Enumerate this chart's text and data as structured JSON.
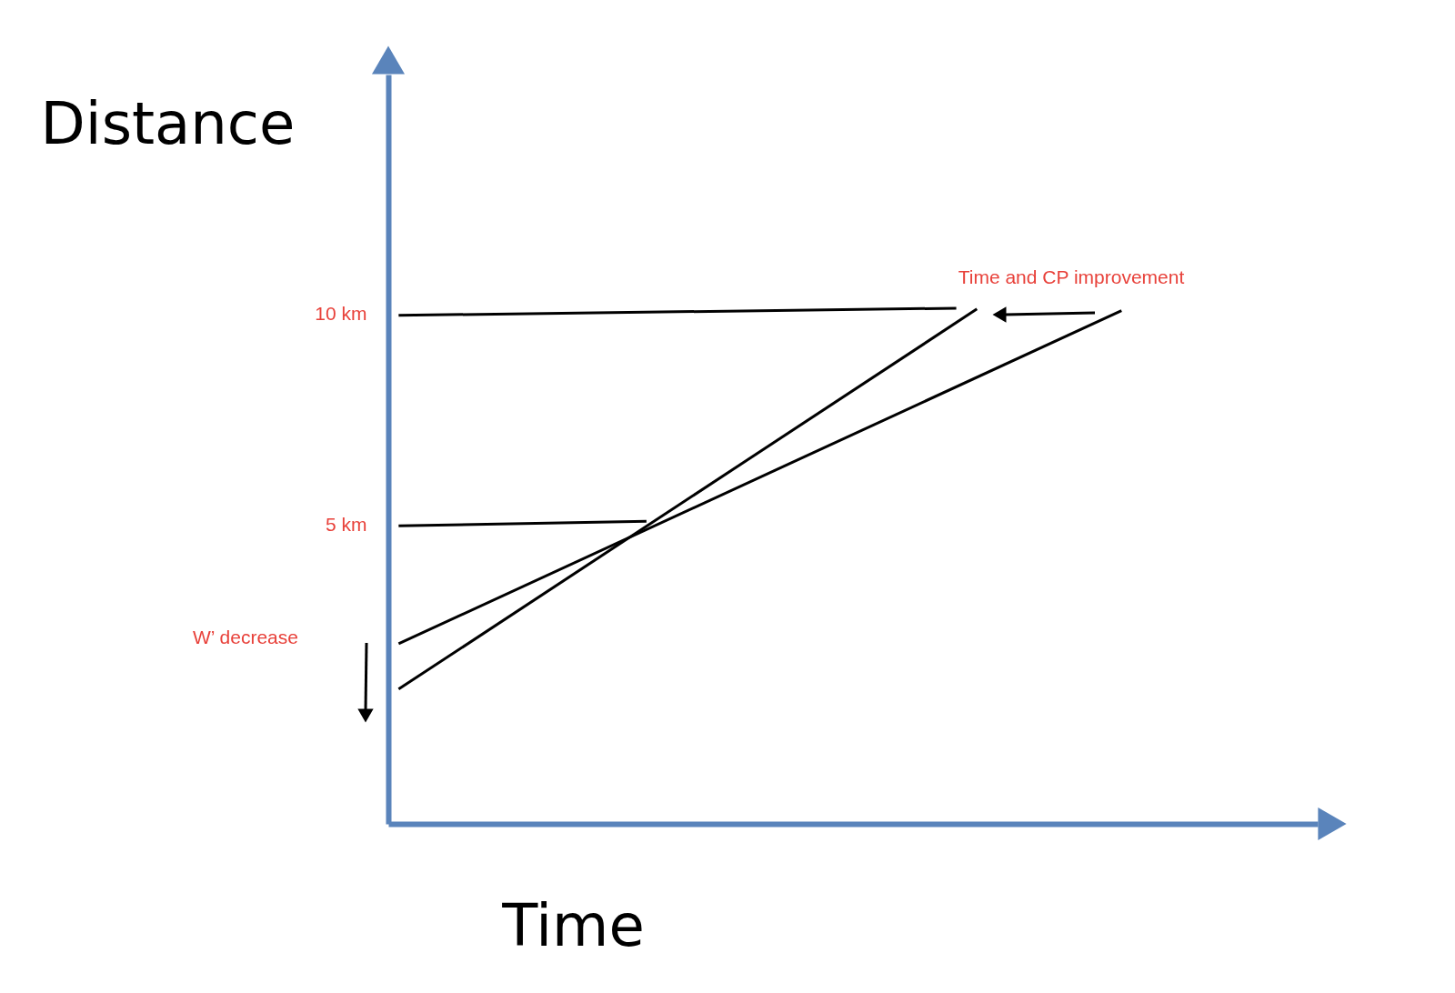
{
  "chart_data": {
    "type": "line",
    "xlabel": "Time",
    "ylabel": "Distance",
    "categories": [
      null,
      null,
      null,
      null,
      null,
      null,
      null,
      null,
      null,
      null,
      null,
      null,
      null,
      null,
      null,
      null,
      null,
      null,
      null,
      null,
      null,
      null,
      null,
      null,
      null,
      null,
      null,
      null,
      null,
      null,
      null,
      null,
      null,
      null,
      null,
      null,
      null,
      null,
      null,
      null,
      null,
      null,
      null,
      null,
      null
    ],
    "ylim": [
      -2.1,
      15.7
    ],
    "yticks": [
      {
        "value": 5,
        "label": "5 km"
      },
      {
        "value": 10,
        "label": "10 km"
      }
    ],
    "tick_labels": "y",
    "grid": false,
    "legend": false,
    "marker": "none",
    "line_style": "solid",
    "series": [
      {
        "color": "#000000",
        "values": [
          9.98,
          null,
          null,
          null,
          null,
          null,
          null,
          null,
          null,
          null,
          null,
          null,
          null,
          null,
          null,
          null,
          null,
          null,
          null,
          null,
          null,
          null,
          null,
          null,
          null,
          null,
          null,
          10.15,
          null,
          null,
          null,
          null,
          null,
          null,
          null,
          null,
          null,
          null,
          null,
          null,
          null,
          null,
          null,
          null,
          null
        ]
      },
      {
        "color": "#000000",
        "values": [
          4.98,
          null,
          null,
          null,
          null,
          null,
          null,
          null,
          null,
          null,
          null,
          null,
          5.09,
          null,
          null,
          null,
          null,
          null,
          null,
          null,
          null,
          null,
          null,
          null,
          null,
          null,
          null,
          null,
          null,
          null,
          null,
          null,
          null,
          null,
          null,
          null,
          null,
          null,
          null,
          null,
          null,
          null,
          null,
          null,
          null
        ]
      },
      {
        "color": "#000000",
        "values": [
          1.1,
          null,
          null,
          null,
          null,
          null,
          null,
          null,
          null,
          null,
          null,
          null,
          null,
          null,
          null,
          null,
          null,
          null,
          null,
          null,
          null,
          null,
          null,
          null,
          null,
          null,
          null,
          null,
          10.13,
          null,
          null,
          null,
          null,
          null,
          null,
          null,
          null,
          null,
          null,
          null,
          null,
          null,
          null,
          null,
          null
        ]
      },
      {
        "color": "#000000",
        "values": [
          2.18,
          null,
          null,
          null,
          null,
          null,
          null,
          null,
          null,
          null,
          null,
          null,
          null,
          null,
          null,
          null,
          null,
          null,
          null,
          null,
          null,
          null,
          null,
          null,
          null,
          null,
          null,
          null,
          null,
          null,
          null,
          null,
          null,
          null,
          null,
          10.09,
          null,
          null,
          null,
          null,
          null,
          null,
          null,
          null,
          null
        ]
      }
    ],
    "annotations": [
      "Time and CP improvement",
      "W’ decrease"
    ]
  }
}
